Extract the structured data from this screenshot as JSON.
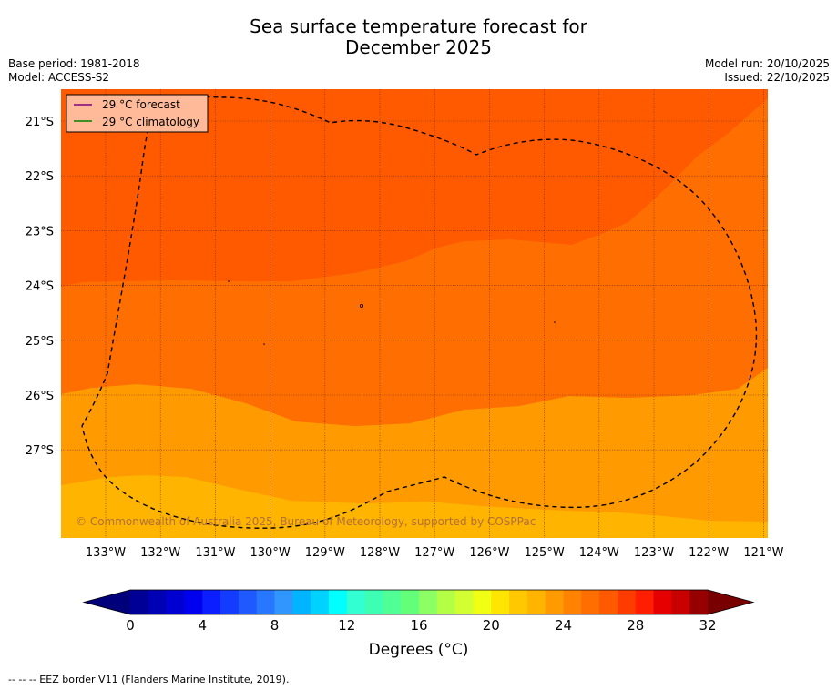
{
  "title_line1": "Sea surface temperature forecast for",
  "title_line2": "December 2025",
  "base_period": "Base period: 1981-2018",
  "model": "Model: ACCESS-S2",
  "model_run": "Model run: 20/10/2025",
  "issued": "Issued: 22/10/2025",
  "legend": {
    "forecast": "29 °C  forecast",
    "climatology": "29 °C  climatology",
    "forecast_color": "#800080",
    "climatology_color": "#008000"
  },
  "copyright": "© Commonwealth of Australia 2025, Bureau of Meteorology, supported by COSPPac",
  "lat_labels": [
    "21°S",
    "22°S",
    "23°S",
    "24°S",
    "25°S",
    "26°S",
    "27°S"
  ],
  "lon_labels": [
    "133°W",
    "132°W",
    "131°W",
    "130°W",
    "129°W",
    "128°W",
    "127°W",
    "126°W",
    "125°W",
    "124°W",
    "123°W",
    "122°W",
    "121°W"
  ],
  "colorbar": {
    "ticks": [
      "0",
      "4",
      "8",
      "12",
      "16",
      "20",
      "24",
      "28",
      "32"
    ],
    "label": "Degrees (°C)",
    "colors": [
      "#000096",
      "#0000b4",
      "#0000d2",
      "#0000f0",
      "#0a1eff",
      "#143cff",
      "#1e5aff",
      "#2878ff",
      "#3296ff",
      "#00b4ff",
      "#00d2ff",
      "#00ffff",
      "#32ffd2",
      "#3cffb4",
      "#50ff96",
      "#64ff78",
      "#8cff64",
      "#b4ff46",
      "#d2ff32",
      "#f0ff14",
      "#ffe600",
      "#ffc800",
      "#ffb400",
      "#ff9b00",
      "#ff8200",
      "#ff6e00",
      "#ff5a00",
      "#ff3c00",
      "#ff1e00",
      "#e60000",
      "#c80000",
      "#960000"
    ],
    "under_color": "#00007a",
    "over_color": "#780000"
  },
  "map_colors": {
    "t23": "#ffb400",
    "t24": "#ff9b00",
    "t25": "#ff8200",
    "t26": "#ff6e00",
    "t27": "#ff5a00"
  },
  "footer": "--  --  -- EEZ border V11 (Flanders Marine Institute, 2019)."
}
